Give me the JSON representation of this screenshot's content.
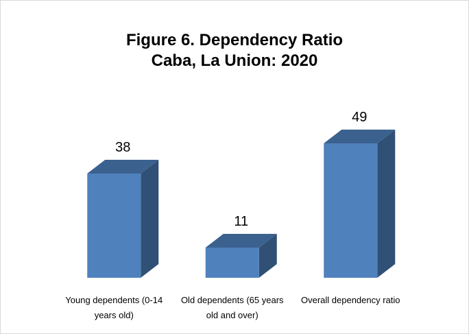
{
  "chart_data": {
    "type": "bar3d",
    "title": "Figure 6. Dependency Ratio\nCaba, La Union: 2020",
    "categories": [
      "Young dependents (0-14 years old)",
      "Old dependents (65 years old and over)",
      "Overall dependency ratio"
    ],
    "values": [
      38,
      11,
      49
    ],
    "color": "#4f81bd"
  }
}
